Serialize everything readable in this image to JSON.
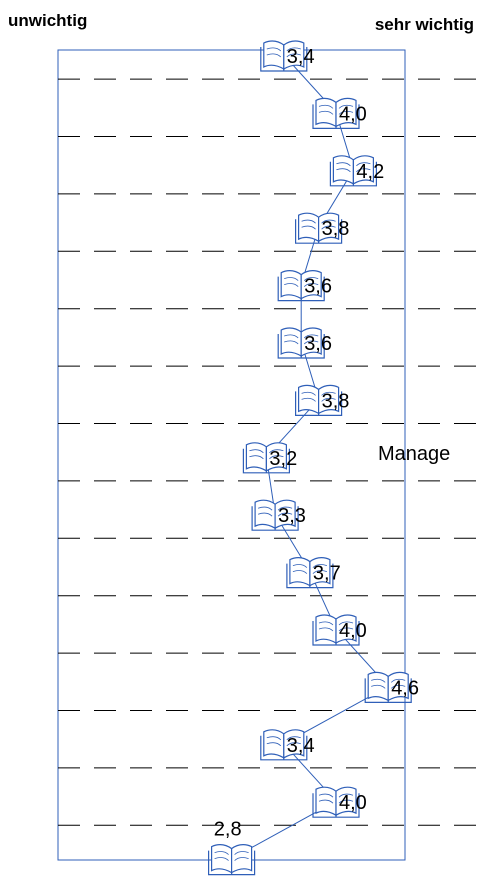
{
  "chart_data": {
    "type": "profile",
    "left_label": "unwichtig",
    "right_label": "sehr wichtig",
    "annotation": "Manage",
    "values": [
      3.4,
      4.0,
      4.2,
      3.8,
      3.6,
      3.6,
      3.8,
      3.2,
      3.3,
      3.7,
      4.0,
      4.6,
      3.4,
      4.0,
      2.8
    ],
    "value_labels": [
      "3,4",
      "4,0",
      "4,2",
      "3,8",
      "3,6",
      "3,6",
      "3,8",
      "3,2",
      "3,3",
      "3,7",
      "4,0",
      "4,6",
      "3,4",
      "4,0",
      "2,8"
    ],
    "xlim": [
      1,
      5
    ],
    "color": "#2f5fb8"
  }
}
